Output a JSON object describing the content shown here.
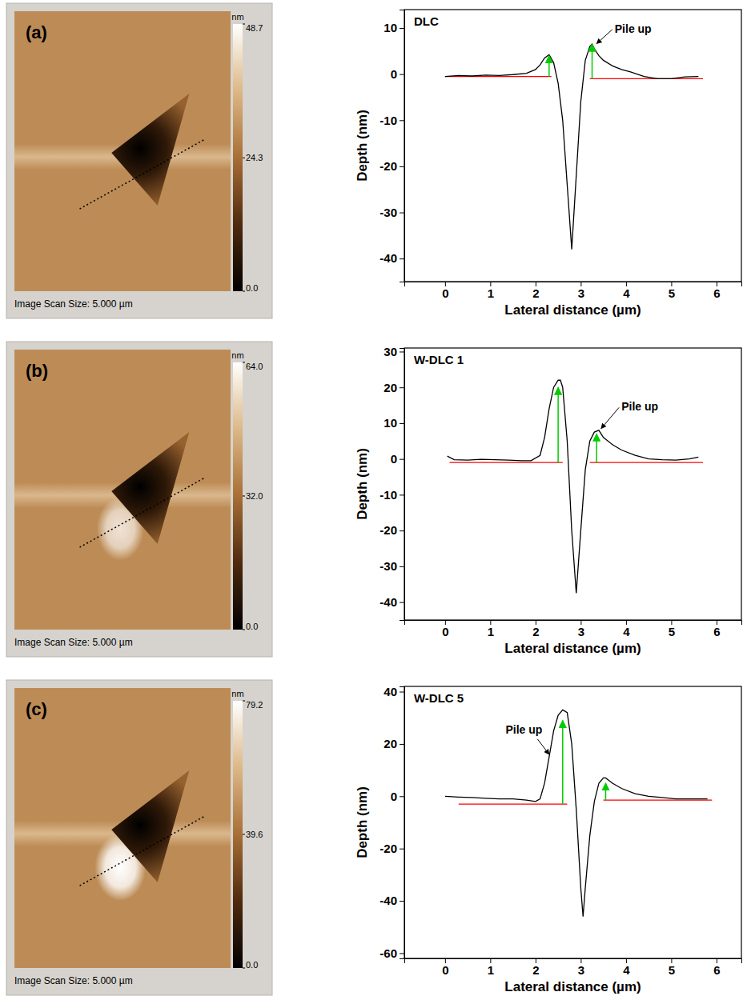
{
  "chart_data": [
    {
      "type": "image",
      "panel_label": "(a)",
      "colorbar_label": "nm",
      "colorbar_range": [
        0,
        48.7
      ],
      "colorbar_ticks": [
        48.7,
        24.3,
        {
          "value": 0,
          "label": "0.0"
        }
      ],
      "caption": "Image Scan Size: 5.000 µm"
    },
    {
      "type": "line",
      "title": "DLC",
      "x_label": "Lateral distance (µm)",
      "y_label": "Depth (nm)",
      "x": [
        0,
        0.3,
        0.6,
        0.9,
        1.2,
        1.5,
        1.8,
        2.0,
        2.1,
        2.2,
        2.3,
        2.4,
        2.5,
        2.6,
        2.7,
        2.8,
        2.9,
        3.0,
        3.1,
        3.2,
        3.25,
        3.3,
        3.4,
        3.5,
        3.7,
        3.9,
        4.1,
        4.4,
        4.7,
        5.0,
        5.3,
        5.6
      ],
      "series": [
        {
          "color": "#000000",
          "values": [
            -0.5,
            -0.3,
            -0.4,
            -0.2,
            -0.3,
            -0.1,
            0.2,
            1.0,
            2.0,
            3.5,
            4.2,
            2.5,
            -2,
            -10,
            -24,
            -38,
            -22,
            -6,
            3,
            6,
            6.5,
            5.5,
            4,
            3,
            1.8,
            1,
            0.5,
            -0.5,
            -1,
            -1,
            -0.6,
            -0.5
          ]
        }
      ],
      "xlim": [
        -0.9,
        6.55
      ],
      "xticks": [
        0,
        1,
        2,
        3,
        4,
        5,
        6
      ],
      "ylim": [
        -45,
        14
      ],
      "yticks": [
        10,
        0,
        -10,
        -20,
        -30,
        -40
      ],
      "baselines": [
        {
          "x": [
            0,
            2.35
          ],
          "y": -0.5,
          "color": "#ff0000"
        },
        {
          "x": [
            3.2,
            5.7
          ],
          "y": -1,
          "color": "#ff0000"
        }
      ],
      "pile_up_arrows": {
        "color": "#00cc00",
        "x": [
          2.3,
          3.25
        ],
        "from": [
          -0.5,
          -1
        ],
        "to": [
          4,
          6.5
        ]
      },
      "annotations": [
        {
          "text": "Pile up",
          "x": 3.75,
          "y": 9,
          "x_to": 3.35,
          "y_to": 6.6
        }
      ]
    },
    {
      "type": "image",
      "panel_label": "(b)",
      "colorbar_label": "nm",
      "colorbar_range": [
        0,
        64
      ],
      "colorbar_ticks": [
        {
          "value": 64,
          "label": "64.0"
        },
        {
          "value": 32,
          "label": "32.0"
        },
        {
          "value": 0,
          "label": "0.0"
        }
      ],
      "caption": "Image Scan Size: 5.000 µm"
    },
    {
      "type": "line",
      "title": "W-DLC 1",
      "x_label": "Lateral distance (µm)",
      "y_label": "Depth (nm)",
      "x": [
        0.05,
        0.2,
        0.5,
        0.8,
        1.1,
        1.4,
        1.7,
        1.9,
        2.1,
        2.2,
        2.3,
        2.4,
        2.5,
        2.55,
        2.6,
        2.7,
        2.8,
        2.9,
        3.0,
        3.1,
        3.2,
        3.3,
        3.4,
        3.5,
        3.7,
        3.9,
        4.2,
        4.5,
        4.8,
        5.1,
        5.4,
        5.6
      ],
      "series": [
        {
          "color": "#000000",
          "values": [
            0.8,
            -0.2,
            -0.3,
            -0.1,
            -0.2,
            -0.3,
            -0.5,
            -0.5,
            1,
            6,
            14,
            20,
            22,
            22,
            20,
            5,
            -20,
            -37.5,
            -20,
            -3,
            5,
            7.5,
            8,
            6,
            4,
            2.5,
            1,
            0,
            -0.2,
            -0.3,
            0,
            0.5
          ]
        }
      ],
      "xlim": [
        -0.9,
        6.55
      ],
      "xticks": [
        0,
        1,
        2,
        3,
        4,
        5,
        6
      ],
      "ylim": [
        -45,
        31
      ],
      "yticks": [
        30,
        20,
        10,
        0,
        -10,
        -20,
        -30,
        -40
      ],
      "baselines": [
        {
          "x": [
            0.1,
            2.6
          ],
          "y": -1,
          "color": "#ff0000"
        },
        {
          "x": [
            3.2,
            5.7
          ],
          "y": -1,
          "color": "#ff0000"
        }
      ],
      "pile_up_arrows": {
        "color": "#00cc00",
        "x": [
          2.5,
          3.35
        ],
        "from": [
          -1,
          -1
        ],
        "to": [
          20,
          7
        ]
      },
      "annotations": [
        {
          "text": "Pile up",
          "x": 3.9,
          "y": 13.5,
          "x_to": 3.45,
          "y_to": 8.5
        }
      ]
    },
    {
      "type": "image",
      "panel_label": "(c)",
      "colorbar_label": "nm",
      "colorbar_range": [
        0,
        79.2
      ],
      "colorbar_ticks": [
        79.2,
        39.6,
        {
          "value": 0,
          "label": "0.0"
        }
      ],
      "caption": "Image Scan Size: 5.000 µm"
    },
    {
      "type": "line",
      "title": "W-DLC 5",
      "x_label": "Lateral distance (µm)",
      "y_label": "Depth (nm)",
      "x": [
        0,
        0.3,
        0.6,
        0.9,
        1.2,
        1.5,
        1.8,
        2.0,
        2.1,
        2.2,
        2.3,
        2.4,
        2.5,
        2.6,
        2.7,
        2.8,
        2.9,
        3.0,
        3.05,
        3.1,
        3.2,
        3.3,
        3.4,
        3.5,
        3.55,
        3.7,
        3.9,
        4.2,
        4.5,
        4.8,
        5.1,
        5.4,
        5.8
      ],
      "series": [
        {
          "color": "#000000",
          "values": [
            0,
            -0.3,
            -0.5,
            -0.8,
            -1,
            -1,
            -1.5,
            -2,
            -1,
            5,
            15,
            25,
            31,
            33,
            32,
            20,
            -5,
            -35,
            -46,
            -35,
            -15,
            -2,
            5,
            7,
            7,
            5,
            3,
            1,
            0,
            -0.5,
            -1,
            -1,
            -1
          ]
        }
      ],
      "xlim": [
        -0.9,
        6.55
      ],
      "xticks": [
        0,
        1,
        2,
        3,
        4,
        5,
        6
      ],
      "ylim": [
        -62,
        42
      ],
      "yticks": [
        40,
        20,
        0,
        -20,
        -40,
        -60
      ],
      "baselines": [
        {
          "x": [
            0.3,
            2.7
          ],
          "y": -3,
          "color": "#ff0000"
        },
        {
          "x": [
            3.5,
            5.9
          ],
          "y": -1.5,
          "color": "#ff0000"
        }
      ],
      "pile_up_arrows": {
        "color": "#00cc00",
        "x": [
          2.6,
          3.55
        ],
        "from": [
          -3,
          -1.5
        ],
        "to": [
          29,
          5
        ]
      },
      "annotations": [
        {
          "text": "Pile up",
          "x": 2.15,
          "y": 24,
          "x_to": 2.3,
          "y_to": 16
        }
      ]
    }
  ]
}
